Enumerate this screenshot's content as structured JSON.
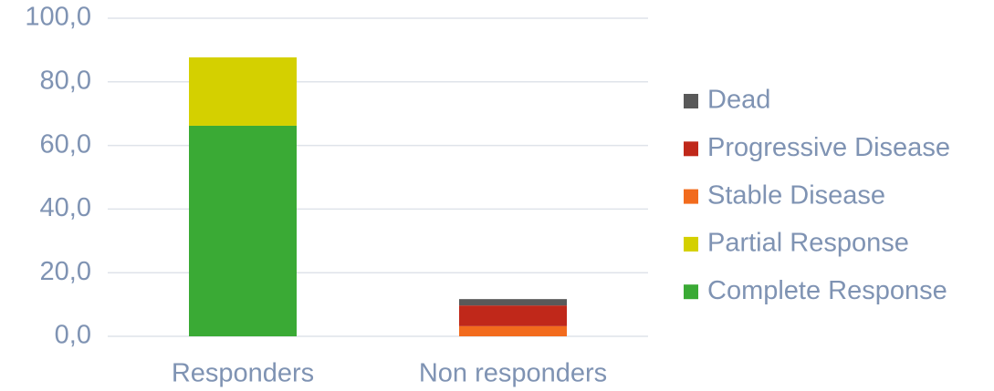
{
  "chart_data": {
    "type": "stacked_bar",
    "categories": [
      "Responders",
      "Non responders"
    ],
    "series": [
      {
        "name": "Complete Response",
        "color": "#3aaa35",
        "values": [
          66.2,
          0
        ]
      },
      {
        "name": "Partial Response",
        "color": "#d4d000",
        "values": [
          21.5,
          0
        ]
      },
      {
        "name": "Stable Disease",
        "color": "#f26b1d",
        "values": [
          0,
          3.2
        ]
      },
      {
        "name": "Progressive Disease",
        "color": "#c0281a",
        "values": [
          0,
          6.5
        ]
      },
      {
        "name": "Dead",
        "color": "#595959",
        "values": [
          0,
          2.0
        ]
      }
    ],
    "ylim": [
      0,
      100
    ],
    "yticks": [
      {
        "value": 0,
        "label": "0,0"
      },
      {
        "value": 20,
        "label": "20,0"
      },
      {
        "value": 40,
        "label": "40,0"
      },
      {
        "value": 60,
        "label": "60,0"
      },
      {
        "value": 80,
        "label": "80,0"
      },
      {
        "value": 100,
        "label": "100,0"
      }
    ],
    "grid": true,
    "legend": "right"
  }
}
